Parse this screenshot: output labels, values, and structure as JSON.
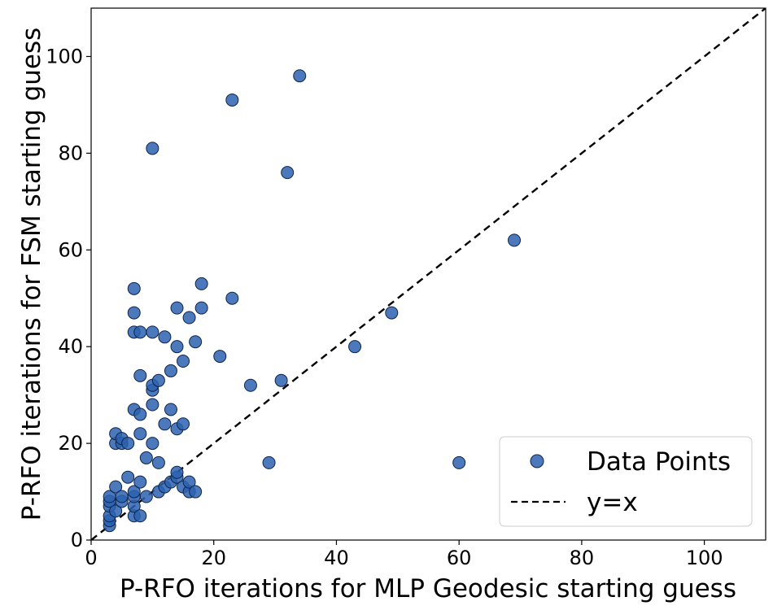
{
  "chart_data": {
    "type": "scatter",
    "title": "",
    "xlabel": "P-RFO iterations for MLP Geodesic starting guess",
    "ylabel": "P-RFO iterations for FSM starting guess",
    "xlim": [
      0,
      110
    ],
    "ylim": [
      0,
      110
    ],
    "xticks": [
      0,
      20,
      40,
      60,
      80,
      100
    ],
    "yticks": [
      0,
      20,
      40,
      60,
      80,
      100
    ],
    "grid": false,
    "legend_position": "lower-right",
    "series": [
      {
        "name": "Data Points",
        "marker": "circle",
        "color": "#2b62b0",
        "edge_color": "#10244a",
        "points": [
          [
            3,
            3
          ],
          [
            3,
            4
          ],
          [
            3,
            5
          ],
          [
            3,
            7
          ],
          [
            3,
            8
          ],
          [
            3,
            9
          ],
          [
            4,
            6
          ],
          [
            4,
            11
          ],
          [
            4,
            20
          ],
          [
            4,
            22
          ],
          [
            5,
            8
          ],
          [
            5,
            9
          ],
          [
            5,
            20
          ],
          [
            5,
            21
          ],
          [
            6,
            13
          ],
          [
            6,
            20
          ],
          [
            7,
            5
          ],
          [
            7,
            7
          ],
          [
            7,
            9
          ],
          [
            7,
            10
          ],
          [
            7,
            27
          ],
          [
            7,
            43
          ],
          [
            7,
            47
          ],
          [
            7,
            52
          ],
          [
            8,
            5
          ],
          [
            8,
            12
          ],
          [
            8,
            22
          ],
          [
            8,
            26
          ],
          [
            8,
            34
          ],
          [
            8,
            43
          ],
          [
            9,
            9
          ],
          [
            9,
            17
          ],
          [
            10,
            20
          ],
          [
            10,
            28
          ],
          [
            10,
            31
          ],
          [
            10,
            32
          ],
          [
            10,
            43
          ],
          [
            10,
            81
          ],
          [
            11,
            10
          ],
          [
            11,
            16
          ],
          [
            11,
            33
          ],
          [
            12,
            11
          ],
          [
            12,
            24
          ],
          [
            12,
            42
          ],
          [
            13,
            12
          ],
          [
            13,
            27
          ],
          [
            13,
            35
          ],
          [
            14,
            13
          ],
          [
            14,
            14
          ],
          [
            14,
            23
          ],
          [
            14,
            40
          ],
          [
            14,
            48
          ],
          [
            15,
            11
          ],
          [
            15,
            24
          ],
          [
            15,
            37
          ],
          [
            16,
            10
          ],
          [
            16,
            12
          ],
          [
            16,
            46
          ],
          [
            17,
            10
          ],
          [
            17,
            41
          ],
          [
            18,
            48
          ],
          [
            18,
            53
          ],
          [
            21,
            38
          ],
          [
            23,
            50
          ],
          [
            23,
            91
          ],
          [
            26,
            32
          ],
          [
            29,
            16
          ],
          [
            31,
            33
          ],
          [
            32,
            76
          ],
          [
            34,
            96
          ],
          [
            43,
            40
          ],
          [
            49,
            47
          ],
          [
            60,
            16
          ],
          [
            69,
            62
          ]
        ]
      }
    ],
    "reference_line": {
      "name": "y=x",
      "style": "dashed",
      "color": "#000000",
      "from": [
        0,
        0
      ],
      "to": [
        110,
        110
      ]
    }
  }
}
